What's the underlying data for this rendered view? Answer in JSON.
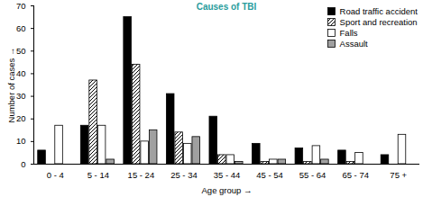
{
  "chart_data": {
    "type": "bar",
    "title": "Causes of TBI",
    "x_label": "Age group",
    "y_label": "Number of cases",
    "categories": [
      "0 - 4",
      "5 - 14",
      "15 - 24",
      "25 - 34",
      "35 - 44",
      "45 - 54",
      "55 - 64",
      "65 - 74",
      "75 +"
    ],
    "series": [
      {
        "name": "Road traffic accident",
        "color": "#000000",
        "values": [
          6,
          17,
          65,
          31,
          21,
          9,
          7,
          6,
          4
        ]
      },
      {
        "name": "Sport and recreation",
        "color": "#000000",
        "line_style": "hatched",
        "values": [
          0,
          37,
          44,
          14,
          4,
          1,
          1,
          1,
          0
        ]
      },
      {
        "name": "Falls",
        "color": "#ffffff",
        "values": [
          17,
          17,
          10,
          9,
          4,
          2,
          8,
          5,
          13
        ]
      },
      {
        "name": "Assault",
        "color": "#a0a0a0",
        "values": [
          0,
          2,
          15,
          12,
          1,
          2,
          2,
          0,
          0
        ]
      }
    ],
    "ylim": [
      0,
      70
    ],
    "yticks": [
      0,
      10,
      20,
      30,
      40,
      50,
      60,
      70
    ],
    "grid": false,
    "legend": "top-right"
  }
}
